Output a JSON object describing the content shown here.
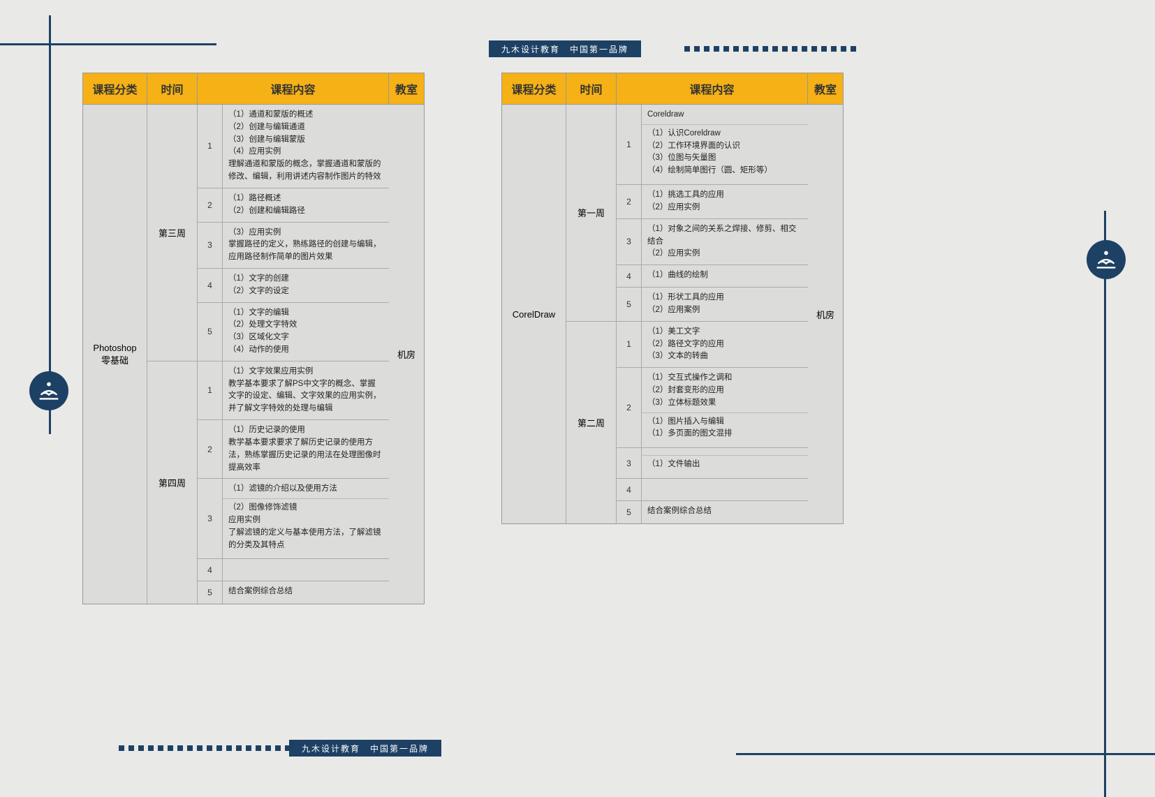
{
  "brand_banner": "九木设计教育　中国第一品牌",
  "colors": {
    "accent": "#1d4164",
    "header_bg": "#f5b115",
    "page_bg": "#e9e9e7",
    "panel_bg": "#dcdcda",
    "border": "#999"
  },
  "headers": {
    "category": "课程分类",
    "time": "时间",
    "content": "课程内容",
    "room": "教室"
  },
  "left": {
    "category_lines": [
      "Photoshop",
      "零基础"
    ],
    "room": "机房",
    "weeks": [
      {
        "label": "第三周",
        "sessions": [
          {
            "num": "1",
            "lines": [
              "（1）通道和蒙版的概述",
              "（2）创建与编辑通道",
              "（3）创建与编辑蒙版",
              "（4）应用实例",
              "理解通道和蒙版的概念，掌握通道和蒙版的修改、编辑，利用讲述内容制作图片的特效"
            ]
          },
          {
            "num": "2",
            "lines": [
              "（1）路径概述",
              "（2）创建和编辑路径"
            ]
          },
          {
            "num": "3",
            "lines": [
              "（3）应用实例",
              "掌握路径的定义，熟练路径的创建与编辑，应用路径制作简单的图片效果"
            ]
          },
          {
            "num": "4",
            "lines": [
              "（1）文字的创建",
              "（2）文字的设定"
            ]
          },
          {
            "num": "5",
            "lines": [
              "（1）文字的编辑",
              "（2）处理文字特效",
              "（3）区域化文字",
              "（4）动作的使用"
            ]
          }
        ]
      },
      {
        "label": "第四周",
        "sessions": [
          {
            "num": "1",
            "lines": [
              "（1）文字效果应用实例",
              "教学基本要求了解PS中文字的概念、掌握文字的设定、编辑、文字效果的应用实例，并了解文字特效的处理与编辑"
            ]
          },
          {
            "num": "2",
            "lines": [
              "（1）历史记录的使用",
              "教学基本要求要求了解历史记录的使用方法，熟练掌握历史记录的用法在处理图像时提高效率"
            ]
          },
          {
            "num": "3",
            "lines": [
              "（1）滤镜的介绍以及使用方法"
            ],
            "extra": [
              "（2）图像修饰滤镜",
              "应用实例",
              "了解滤镜的定义与基本使用方法，了解滤镜的分类及其特点"
            ]
          },
          {
            "num": "4",
            "lines": [
              ""
            ]
          },
          {
            "num": "5",
            "lines": [
              "结合案例综合总结"
            ]
          }
        ]
      }
    ]
  },
  "right": {
    "category_lines": [
      "CorelDraw"
    ],
    "room": "机房",
    "weeks": [
      {
        "label": "第一周",
        "sessions": [
          {
            "num": "1",
            "lines": [
              "Coreldraw"
            ],
            "extra": [
              "（1）认识Coreldraw",
              "（2）工作环境界面的认识",
              "（3）位图与矢量图",
              "（4）绘制简单图行（圆、矩形等）"
            ]
          },
          {
            "num": "2",
            "lines": [
              "（1）挑选工具的应用",
              "（2）应用实例"
            ]
          },
          {
            "num": "3",
            "lines": [
              "（1）对象之间的关系之焊接、修剪、相交结合",
              "（2）应用实例"
            ]
          },
          {
            "num": "4",
            "lines": [
              "（1）曲线的绘制"
            ]
          },
          {
            "num": "5",
            "lines": [
              "（1）形状工具的应用",
              "（2）应用案例"
            ]
          }
        ]
      },
      {
        "label": "第二周",
        "sessions": [
          {
            "num": "1",
            "lines": [
              "（1）美工文字",
              "（2）路径文字的应用",
              "（3）文本的转曲"
            ]
          },
          {
            "num": "2",
            "lines": [
              "（1）交互式操作之调和",
              "（2）封套变形的应用",
              "（3）立体标题效果"
            ],
            "extra": [
              "（1）图片插入与编辑",
              "（1）多页面的图文混排"
            ]
          },
          {
            "num": "3",
            "lines": [
              ""
            ],
            "extra": [
              "（1）文件输出"
            ]
          },
          {
            "num": "4",
            "lines": [
              ""
            ]
          },
          {
            "num": "5",
            "lines": [
              "结合案例综合总结"
            ]
          }
        ]
      }
    ]
  }
}
